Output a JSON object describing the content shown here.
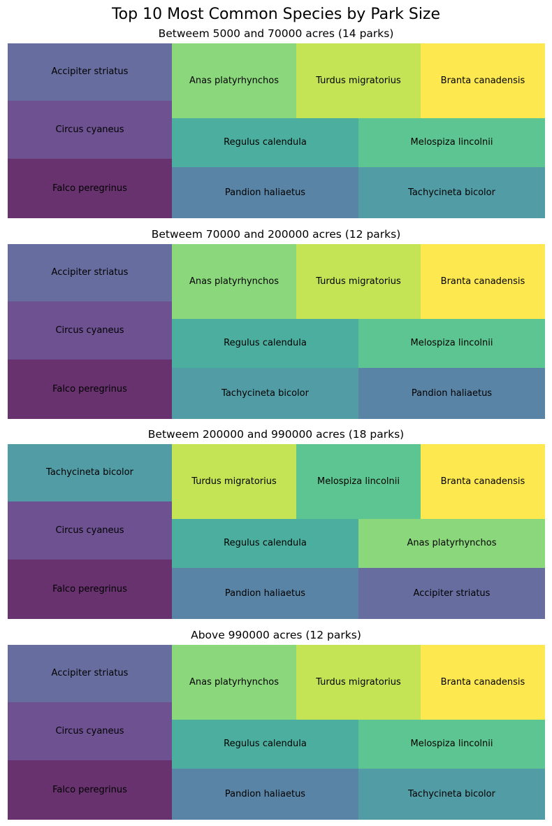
{
  "title": "Top 10 Most Common Species by Park Size",
  "colors": {
    "Falco peregrinus": "#68326f",
    "Circus cyaneus": "#6d5190",
    "Accipiter striatus": "#676d9f",
    "Pandion haliaetus": "#5984a5",
    "Tachycineta bicolor": "#529ca5",
    "Regulus calendula": "#4bae9f",
    "Melospiza lincolnii": "#5dc591",
    "Anas platyrhynchos": "#8bd77b",
    "Turdus migratorius": "#c4e456",
    "Branta canadensis": "#fde850"
  },
  "chart_data": [
    {
      "type": "treemap",
      "title": "Betweem 5000 and 70000 acres (14 parks)",
      "cells": [
        {
          "label": "Falco peregrinus"
        },
        {
          "label": "Circus cyaneus"
        },
        {
          "label": "Accipiter striatus"
        },
        {
          "label": "Pandion haliaetus"
        },
        {
          "label": "Tachycineta bicolor"
        },
        {
          "label": "Regulus calendula"
        },
        {
          "label": "Melospiza lincolnii"
        },
        {
          "label": "Anas platyrhynchos"
        },
        {
          "label": "Turdus migratorius"
        },
        {
          "label": "Branta canadensis"
        }
      ]
    },
    {
      "type": "treemap",
      "title": "Betweem 70000 and 200000 acres (12 parks)",
      "cells": [
        {
          "label": "Falco peregrinus"
        },
        {
          "label": "Circus cyaneus"
        },
        {
          "label": "Accipiter striatus"
        },
        {
          "label": "Tachycineta bicolor"
        },
        {
          "label": "Pandion haliaetus"
        },
        {
          "label": "Regulus calendula"
        },
        {
          "label": "Melospiza lincolnii"
        },
        {
          "label": "Anas platyrhynchos"
        },
        {
          "label": "Turdus migratorius"
        },
        {
          "label": "Branta canadensis"
        }
      ]
    },
    {
      "type": "treemap",
      "title": "Betweem 200000 and 990000 acres (18 parks)",
      "cells": [
        {
          "label": "Falco peregrinus"
        },
        {
          "label": "Circus cyaneus"
        },
        {
          "label": "Tachycineta bicolor"
        },
        {
          "label": "Pandion haliaetus"
        },
        {
          "label": "Accipiter striatus"
        },
        {
          "label": "Regulus calendula"
        },
        {
          "label": "Anas platyrhynchos"
        },
        {
          "label": "Turdus migratorius"
        },
        {
          "label": "Melospiza lincolnii"
        },
        {
          "label": "Branta canadensis"
        }
      ]
    },
    {
      "type": "treemap",
      "title": "Above 990000 acres (12 parks)",
      "cells": [
        {
          "label": "Falco peregrinus"
        },
        {
          "label": "Circus cyaneus"
        },
        {
          "label": "Accipiter striatus"
        },
        {
          "label": "Pandion haliaetus"
        },
        {
          "label": "Tachycineta bicolor"
        },
        {
          "label": "Regulus calendula"
        },
        {
          "label": "Melospiza lincolnii"
        },
        {
          "label": "Anas platyrhynchos"
        },
        {
          "label": "Turdus migratorius"
        },
        {
          "label": "Branta canadensis"
        }
      ]
    }
  ]
}
